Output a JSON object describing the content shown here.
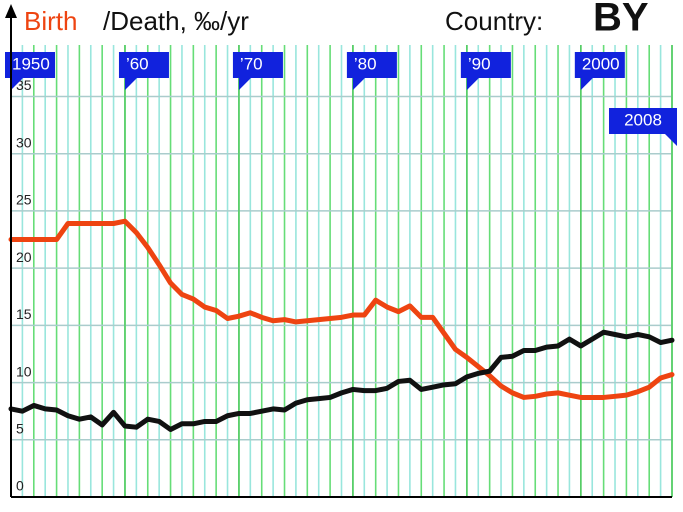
{
  "chart_data": {
    "type": "line",
    "title": "/Death, ‰/yr",
    "country_label": "Country:",
    "country": "BY",
    "x": [
      1950,
      1951,
      1952,
      1953,
      1954,
      1955,
      1956,
      1957,
      1958,
      1959,
      1960,
      1961,
      1962,
      1963,
      1964,
      1965,
      1966,
      1967,
      1968,
      1969,
      1970,
      1971,
      1972,
      1973,
      1974,
      1975,
      1976,
      1977,
      1978,
      1979,
      1980,
      1981,
      1982,
      1983,
      1984,
      1985,
      1986,
      1987,
      1988,
      1989,
      1990,
      1991,
      1992,
      1993,
      1994,
      1995,
      1996,
      1997,
      1998,
      1999,
      2000,
      2001,
      2002,
      2003,
      2004,
      2005,
      2006,
      2007,
      2008
    ],
    "series": [
      {
        "name": "Birth",
        "color": "#ee4411",
        "values": [
          22.5,
          22.5,
          22.5,
          22.5,
          22.5,
          23.9,
          23.9,
          23.9,
          23.9,
          23.9,
          24.1,
          23.1,
          21.8,
          20.3,
          18.7,
          17.7,
          17.3,
          16.6,
          16.3,
          15.6,
          15.8,
          16.1,
          15.7,
          15.4,
          15.5,
          15.3,
          15.4,
          15.5,
          15.6,
          15.7,
          15.9,
          15.9,
          17.2,
          16.6,
          16.2,
          16.7,
          15.7,
          15.7,
          14.3,
          12.9,
          12.2,
          11.4,
          10.6,
          9.7,
          9.1,
          8.7,
          8.8,
          9.0,
          9.1,
          8.9,
          8.7,
          8.7,
          8.7,
          8.8,
          8.9,
          9.2,
          9.6,
          10.4,
          10.7
        ]
      },
      {
        "name": "/Death, ‰/yr",
        "color": "#111111",
        "values": [
          7.7,
          7.5,
          8.0,
          7.7,
          7.6,
          7.1,
          6.8,
          7.0,
          6.3,
          7.4,
          6.2,
          6.1,
          6.8,
          6.6,
          5.9,
          6.4,
          6.4,
          6.6,
          6.6,
          7.1,
          7.3,
          7.3,
          7.5,
          7.7,
          7.6,
          8.2,
          8.5,
          8.6,
          8.7,
          9.1,
          9.4,
          9.3,
          9.3,
          9.5,
          10.1,
          10.2,
          9.4,
          9.6,
          9.8,
          9.9,
          10.5,
          10.8,
          11.0,
          12.2,
          12.3,
          12.8,
          12.8,
          13.1,
          13.2,
          13.8,
          13.2,
          13.8,
          14.4,
          14.2,
          14.0,
          14.2,
          14.0,
          13.5,
          13.7
        ]
      }
    ],
    "xlim": [
      1950,
      2008
    ],
    "xticks": [
      1950,
      {
        "value": 1960,
        "label": "’60"
      },
      {
        "value": 1970,
        "label": "’70"
      },
      {
        "value": 1980,
        "label": "’80"
      },
      {
        "value": 1990,
        "label": "’90"
      },
      2000,
      2008
    ],
    "ylim": [
      0,
      39.5
    ],
    "yticks": [
      0,
      5,
      10,
      15,
      20,
      25,
      30,
      35
    ],
    "grid": true
  }
}
